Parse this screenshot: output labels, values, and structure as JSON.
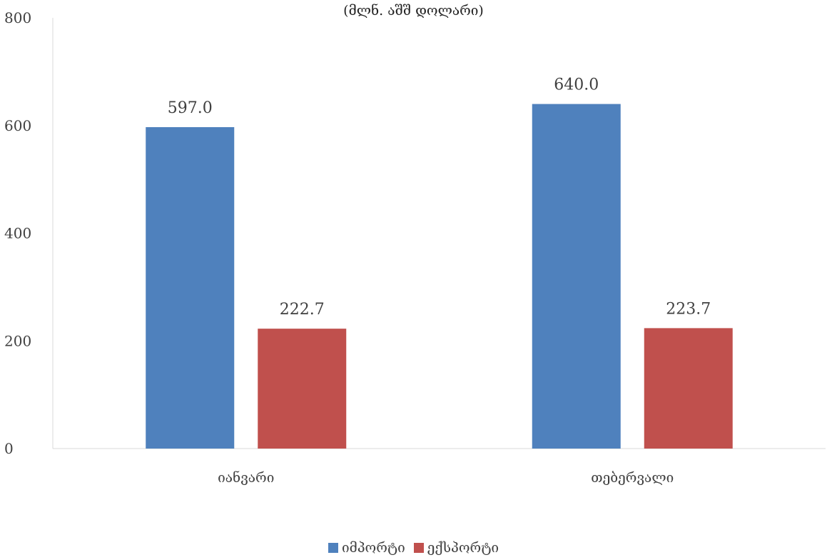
{
  "chart_data": {
    "type": "bar",
    "title": "",
    "subtitle": "(მლნ. აშშ დოლარი)",
    "categories": [
      "იანვარი",
      "თებერვალი"
    ],
    "series": [
      {
        "name": "იმპორტი",
        "values": [
          597.0,
          640.0
        ],
        "labels": [
          "597.0",
          "640.0"
        ],
        "color": "#4f81bd"
      },
      {
        "name": "ექსპორტი",
        "values": [
          222.7,
          223.7
        ],
        "labels": [
          "222.7",
          "223.7"
        ],
        "color": "#c0504d"
      }
    ],
    "ylim": [
      0,
      800
    ],
    "yticks": [
      0,
      200,
      400,
      600,
      800
    ],
    "ytick_labels": [
      "0",
      "200",
      "400",
      "600",
      "800"
    ],
    "grid": false,
    "legend_position": "bottom"
  }
}
